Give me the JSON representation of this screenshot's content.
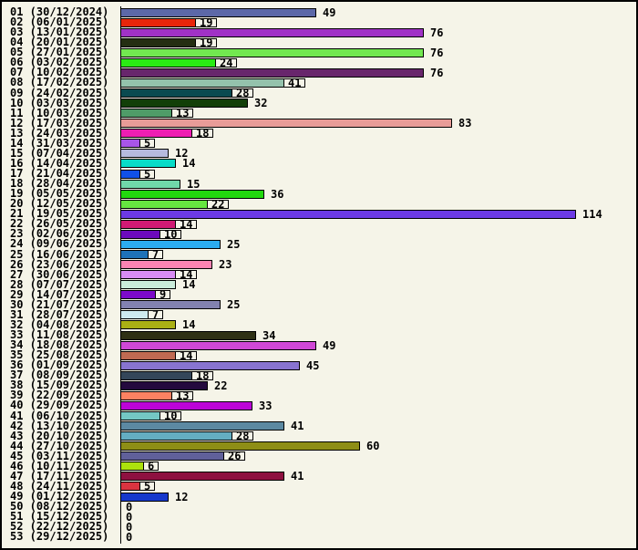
{
  "background_color": "#f5f4e8",
  "frame_border_color": "#000000",
  "text_color": "#000000",
  "chart_data": {
    "type": "bar",
    "orientation": "horizontal",
    "title": "",
    "xlabel": "",
    "ylabel": "",
    "xlim": [
      0,
      128
    ],
    "grid": false,
    "legend": false,
    "value_labels": "at-bar-end",
    "categories": [
      "01 (30/12/2024)",
      "02 (06/01/2025)",
      "03 (13/01/2025)",
      "04 (20/01/2025)",
      "05 (27/01/2025)",
      "06 (03/02/2025)",
      "07 (10/02/2025)",
      "08 (17/02/2025)",
      "09 (24/02/2025)",
      "10 (03/03/2025)",
      "11 (10/03/2025)",
      "12 (17/03/2025)",
      "13 (24/03/2025)",
      "14 (31/03/2025)",
      "15 (07/04/2025)",
      "16 (14/04/2025)",
      "17 (21/04/2025)",
      "18 (28/04/2025)",
      "19 (05/05/2025)",
      "20 (12/05/2025)",
      "21 (19/05/2025)",
      "22 (26/05/2025)",
      "23 (02/06/2025)",
      "24 (09/06/2025)",
      "25 (16/06/2025)",
      "26 (23/06/2025)",
      "27 (30/06/2025)",
      "28 (07/07/2025)",
      "29 (14/07/2025)",
      "30 (21/07/2025)",
      "31 (28/07/2025)",
      "32 (04/08/2025)",
      "33 (11/08/2025)",
      "34 (18/08/2025)",
      "35 (25/08/2025)",
      "36 (01/09/2025)",
      "37 (08/09/2025)",
      "38 (15/09/2025)",
      "39 (22/09/2025)",
      "40 (29/09/2025)",
      "41 (06/10/2025)",
      "42 (13/10/2025)",
      "43 (20/10/2025)",
      "44 (27/10/2025)",
      "45 (03/11/2025)",
      "46 (10/11/2025)",
      "47 (17/11/2025)",
      "48 (24/11/2025)",
      "49 (01/12/2025)",
      "50 (08/12/2025)",
      "51 (15/12/2025)",
      "52 (22/12/2025)",
      "53 (29/12/2025)"
    ],
    "values": [
      49,
      19,
      76,
      19,
      76,
      24,
      76,
      41,
      28,
      32,
      13,
      83,
      18,
      5,
      12,
      14,
      5,
      15,
      36,
      22,
      114,
      14,
      10,
      25,
      7,
      23,
      14,
      14,
      9,
      25,
      7,
      14,
      34,
      49,
      14,
      45,
      18,
      22,
      13,
      33,
      10,
      41,
      28,
      60,
      26,
      6,
      41,
      5,
      12,
      0,
      0,
      0,
      0
    ],
    "bar_colors": [
      "#5C68A8",
      "#E8260A",
      "#A032C6",
      "#242E12",
      "#72E850",
      "#2AEC14",
      "#68266C",
      "#94C2AC",
      "#0A4A50",
      "#123F08",
      "#4F9C68",
      "#E89C98",
      "#EE1EB2",
      "#A855E8",
      "#B6BADE",
      "#08DCC8",
      "#1150E8",
      "#70D8AA",
      "#22D80E",
      "#66E640",
      "#6C3AE4",
      "#D01A74",
      "#6C0ABC",
      "#2CACF0",
      "#1E72B8",
      "#FC84B2",
      "#D88CF4",
      "#CAECDA",
      "#7C0ACA",
      "#8282B0",
      "#CEEAF0",
      "#AAB014",
      "#2E3014",
      "#D048D6",
      "#C06A52",
      "#8874D0",
      "#344659",
      "#240A3E",
      "#FC8262",
      "#BC04D8",
      "#74C8C4",
      "#5C89A2",
      "#64AEC2",
      "#8E8E16",
      "#60609A",
      "#ACE20C",
      "#8E1040",
      "#DA3440",
      "#1638CC",
      null,
      null,
      null,
      null
    ]
  }
}
